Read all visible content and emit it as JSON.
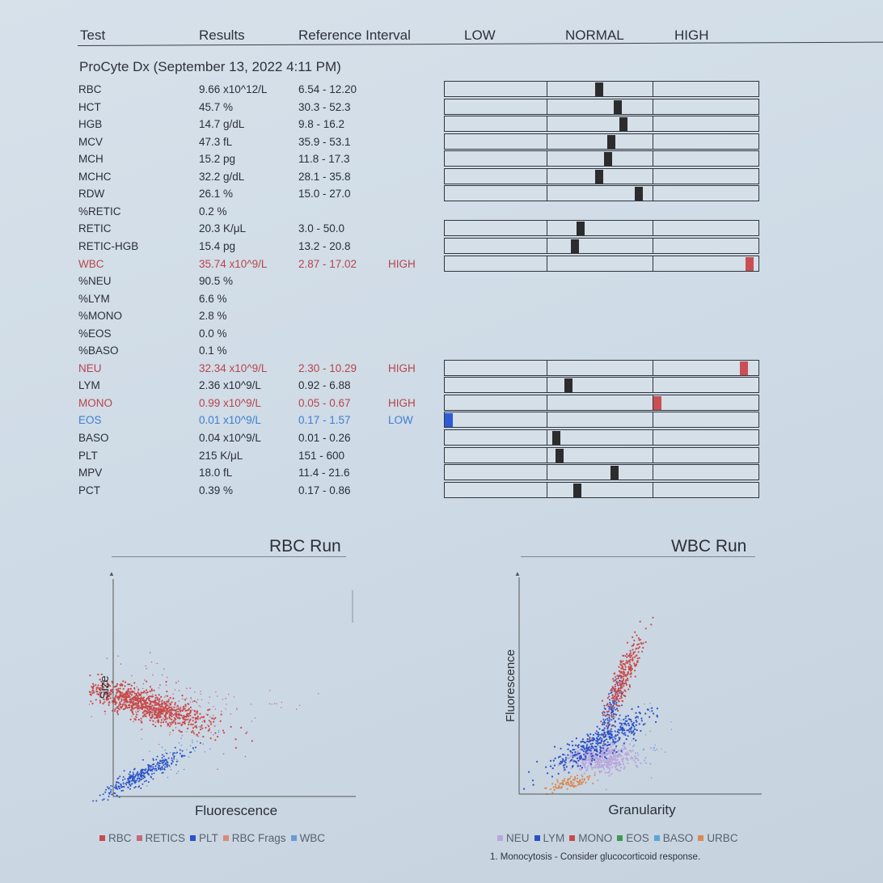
{
  "header": {
    "test": "Test",
    "results": "Results",
    "reference": "Reference Interval",
    "low": "LOW",
    "normal": "NORMAL",
    "high": "HIGH"
  },
  "instrument": "ProCyte Dx (September 13, 2022 4:11 PM)",
  "rows": [
    {
      "test": "RBC",
      "result": "9.66 x10^12/L",
      "ref": "6.54 - 12.20",
      "flag": "",
      "pos": 0.5,
      "status": "normal"
    },
    {
      "test": "HCT",
      "result": "45.7 %",
      "ref": "30.3 - 52.3",
      "flag": "",
      "pos": 0.56,
      "status": "normal"
    },
    {
      "test": "HGB",
      "result": "14.7 g/dL",
      "ref": "9.8 - 16.2",
      "flag": "",
      "pos": 0.58,
      "status": "normal"
    },
    {
      "test": "MCV",
      "result": "47.3 fL",
      "ref": "35.9 - 53.1",
      "flag": "",
      "pos": 0.54,
      "status": "normal"
    },
    {
      "test": "MCH",
      "result": "15.2 pg",
      "ref": "11.8 - 17.3",
      "flag": "",
      "pos": 0.53,
      "status": "normal"
    },
    {
      "test": "MCHC",
      "result": "32.2 g/dL",
      "ref": "28.1 - 35.8",
      "flag": "",
      "pos": 0.5,
      "status": "normal"
    },
    {
      "test": "RDW",
      "result": "26.1 %",
      "ref": "15.0 - 27.0",
      "flag": "",
      "pos": 0.63,
      "status": "normal"
    },
    {
      "test": "%RETIC",
      "result": "0.2 %",
      "ref": "",
      "flag": "",
      "pos": null,
      "status": "normal"
    },
    {
      "test": "RETIC",
      "result": "20.3 K/μL",
      "ref": "3.0 - 50.0",
      "flag": "",
      "pos": 0.44,
      "status": "normal"
    },
    {
      "test": "RETIC-HGB",
      "result": "15.4 pg",
      "ref": "13.2 - 20.8",
      "flag": "",
      "pos": 0.42,
      "status": "normal"
    },
    {
      "test": "WBC",
      "result": "35.74 x10^9/L",
      "ref": "2.87 - 17.02",
      "flag": "HIGH",
      "pos": 0.99,
      "status": "high"
    },
    {
      "test": "%NEU",
      "result": "90.5 %",
      "ref": "",
      "flag": "",
      "pos": null,
      "status": "normal"
    },
    {
      "test": "%LYM",
      "result": "6.6 %",
      "ref": "",
      "flag": "",
      "pos": null,
      "status": "normal"
    },
    {
      "test": "%MONO",
      "result": "2.8 %",
      "ref": "",
      "flag": "",
      "pos": null,
      "status": "normal"
    },
    {
      "test": "%EOS",
      "result": "0.0 %",
      "ref": "",
      "flag": "",
      "pos": null,
      "status": "normal"
    },
    {
      "test": "%BASO",
      "result": "0.1 %",
      "ref": "",
      "flag": "",
      "pos": null,
      "status": "normal"
    },
    {
      "test": "NEU",
      "result": "32.34 x10^9/L",
      "ref": "2.30 - 10.29",
      "flag": "HIGH",
      "pos": 0.97,
      "status": "high"
    },
    {
      "test": "LYM",
      "result": "2.36 x10^9/L",
      "ref": "0.92 - 6.88",
      "flag": "",
      "pos": 0.4,
      "status": "normal"
    },
    {
      "test": "MONO",
      "result": "0.99 x10^9/L",
      "ref": "0.05 - 0.67",
      "flag": "HIGH",
      "pos": 0.69,
      "status": "high"
    },
    {
      "test": "EOS",
      "result": "0.01 x10^9/L",
      "ref": "0.17 - 1.57",
      "flag": "LOW",
      "pos": 0.0,
      "status": "low"
    },
    {
      "test": "BASO",
      "result": "0.04 x10^9/L",
      "ref": "0.01 - 0.26",
      "flag": "",
      "pos": 0.36,
      "status": "normal"
    },
    {
      "test": "PLT",
      "result": "215 K/μL",
      "ref": "151 - 600",
      "flag": "",
      "pos": 0.37,
      "status": "normal"
    },
    {
      "test": "MPV",
      "result": "18.0 fL",
      "ref": "11.4 - 21.6",
      "flag": "",
      "pos": 0.55,
      "status": "normal"
    },
    {
      "test": "PCT",
      "result": "0.39 %",
      "ref": "0.17 - 0.86",
      "flag": "",
      "pos": 0.43,
      "status": "normal"
    }
  ],
  "rbc_run": {
    "title": "RBC Run",
    "xlabel": "Fluorescence",
    "ylabel": "Size",
    "legend": [
      {
        "label": "RBC",
        "color": "#c94a4a"
      },
      {
        "label": "RETICS",
        "color": "#c46a7a"
      },
      {
        "label": "PLT",
        "color": "#2b52c9"
      },
      {
        "label": "RBC Frags",
        "color": "#d98a7a"
      },
      {
        "label": "WBC",
        "color": "#6a9ad6"
      }
    ]
  },
  "wbc_run": {
    "title": "WBC Run",
    "xlabel": "Granularity",
    "ylabel": "Fluorescence",
    "legend": [
      {
        "label": "NEU",
        "color": "#b9a6dc"
      },
      {
        "label": "LYM",
        "color": "#2b4fc8"
      },
      {
        "label": "MONO",
        "color": "#c94a4a"
      },
      {
        "label": "EOS",
        "color": "#3f9a4f"
      },
      {
        "label": "BASO",
        "color": "#5aa5d8"
      },
      {
        "label": "URBC",
        "color": "#d88a55"
      }
    ]
  },
  "footnote": "1. Monocytosis - Consider glucocorticoid response."
}
